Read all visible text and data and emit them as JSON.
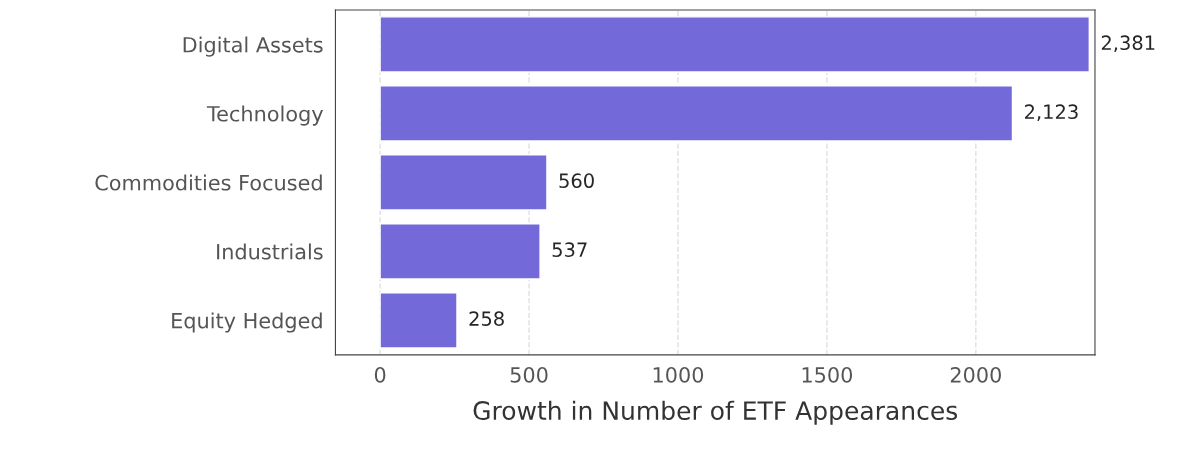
{
  "chart_data": {
    "type": "bar",
    "orientation": "horizontal",
    "xlabel": "Growth in Number of ETF Appearances",
    "categories": [
      "Digital Assets",
      "Technology",
      "Commodities Focused",
      "Industrials",
      "Equity Hedged"
    ],
    "values": [
      2381,
      2123,
      560,
      537,
      258
    ],
    "value_labels": [
      "2,381",
      "2,123",
      "560",
      "537",
      "258"
    ],
    "color": "#7369d9",
    "xlim": [
      -150,
      2400
    ],
    "xticks": [
      0,
      500,
      1000,
      1500,
      2000
    ],
    "grid": "x"
  }
}
